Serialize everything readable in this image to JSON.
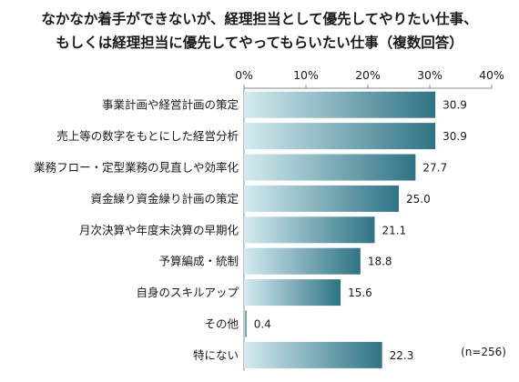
{
  "chart_data": {
    "type": "bar",
    "orientation": "horizontal",
    "title_line1": "なかなか着手ができないが、経理担当として優先してやりたい仕事、",
    "title_line2": "もしくは経理担当に優先してやってもらいたい仕事（複数回答）",
    "categories": [
      "事業計画や経営計画の策定",
      "売上等の数字をもとにした経営分析",
      "業務フロー・定型業務の見直しや効率化",
      "資金繰り資金繰り計画の策定",
      "月次決算や年度末決算の早期化",
      "予算編成・統制",
      "自身のスキルアップ",
      "その他",
      "特にない"
    ],
    "values": [
      30.9,
      30.9,
      27.7,
      25.0,
      21.1,
      18.8,
      15.6,
      0.4,
      22.3
    ],
    "value_labels": [
      "30.9",
      "30.9",
      "27.7",
      "25.0",
      "21.1",
      "18.8",
      "15.6",
      "0.4",
      "22.3"
    ],
    "x_ticks": [
      "0%",
      "10%",
      "20%",
      "30%",
      "40%"
    ],
    "xlim": [
      0,
      40
    ],
    "axis_position": "top",
    "grid": false,
    "sample_note": "(n=256)",
    "colors": {
      "bar_dark": "#2f7384",
      "bar_light": "#d4ebf1",
      "axis": "#888888"
    }
  }
}
